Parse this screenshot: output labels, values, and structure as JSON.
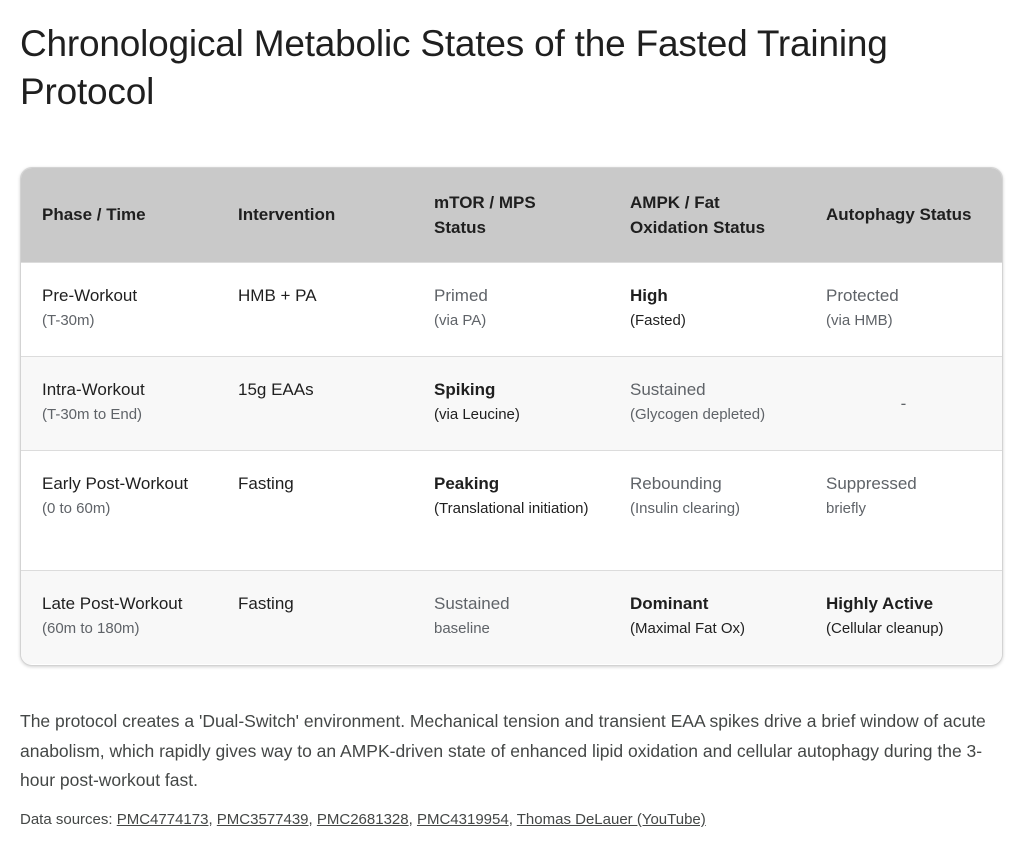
{
  "title": "Chronological Metabolic States of the Fasted Training Protocol",
  "table": {
    "headers": [
      "Phase / Time",
      "Intervention",
      "mTOR / MPS Status",
      "AMPK / Fat Oxidation Status",
      "Autophagy Status"
    ],
    "rows": [
      {
        "phase": {
          "main": "Pre-Workout",
          "sub": "(T-30m)"
        },
        "intervention": "HMB + PA",
        "mtor": {
          "main": "Primed",
          "sub": "(via PA)"
        },
        "ampk": {
          "main": "High",
          "sub": "(Fasted)"
        },
        "autophagy": {
          "main": "Protected",
          "sub": "(via HMB)"
        }
      },
      {
        "phase": {
          "main": "Intra-Workout",
          "sub": "(T-30m to End)"
        },
        "intervention": "15g EAAs",
        "mtor": {
          "main": "Spiking",
          "sub": "(via Leucine)"
        },
        "ampk": {
          "main": "Sustained",
          "sub": "(Glycogen depleted)"
        },
        "autophagy": {
          "main": "-"
        }
      },
      {
        "phase": {
          "main": "Early Post-Workout",
          "sub": "(0 to 60m)"
        },
        "intervention": "Fasting",
        "mtor": {
          "main": "Peaking",
          "sub": "(Translational initiation)"
        },
        "ampk": {
          "main": "Rebounding",
          "sub": "(Insulin clearing)"
        },
        "autophagy": {
          "main": "Suppressed",
          "sub": "briefly"
        }
      },
      {
        "phase": {
          "main": "Late Post-Workout",
          "sub": "(60m to 180m)"
        },
        "intervention": "Fasting",
        "mtor": {
          "main": "Sustained",
          "sub": "baseline"
        },
        "ampk": {
          "main": "Dominant",
          "sub": "(Maximal Fat Ox)"
        },
        "autophagy": {
          "main": "Highly Active",
          "sub": "(Cellular cleanup)"
        }
      }
    ]
  },
  "summary": "The protocol creates a 'Dual-Switch' environment. Mechanical tension and transient EAA spikes drive a brief window of acute anabolism, which rapidly gives way to an AMPK-driven state of enhanced lipid oxidation and cellular autophagy during the 3-hour post-workout fast.",
  "sources": {
    "label": "Data sources:",
    "links": [
      "PMC4774173",
      "PMC3577439",
      "PMC2681328",
      "PMC4319954",
      "Thomas DeLauer (YouTube)"
    ],
    "separator": ", "
  }
}
